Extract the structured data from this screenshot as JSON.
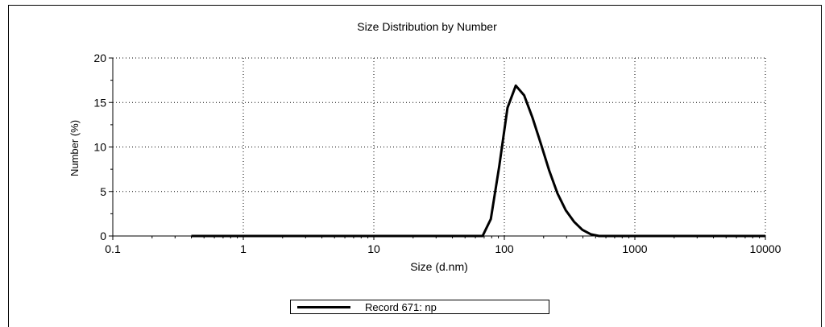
{
  "chart_data": {
    "type": "line",
    "title": "Size Distribution by Number",
    "xlabel": "Size (d.nm)",
    "ylabel": "Number (%)",
    "xscale": "log",
    "xlim": [
      0.1,
      10000
    ],
    "ylim": [
      0,
      20
    ],
    "xticks": [
      "0.1",
      "1",
      "10",
      "100",
      "1000",
      "10000"
    ],
    "yticks": [
      "0",
      "5",
      "10",
      "15",
      "20"
    ],
    "grid": true,
    "legend_position": "bottom",
    "series": [
      {
        "name": "Record 671: np",
        "color": "#000000",
        "x": [
          0.4,
          1,
          10,
          60,
          68.1,
          78.8,
          91.3,
          105.7,
          122.4,
          141.8,
          164.2,
          190.1,
          220.2,
          255,
          295.3,
          342,
          396.1,
          458.7,
          531.2,
          700,
          1000,
          5000,
          10000
        ],
        "y": [
          0,
          0,
          0,
          0,
          0,
          1.9,
          7.8,
          14.4,
          16.9,
          15.8,
          13.3,
          10.4,
          7.4,
          4.8,
          2.9,
          1.6,
          0.7,
          0.2,
          0,
          0,
          0,
          0,
          0
        ]
      }
    ]
  }
}
